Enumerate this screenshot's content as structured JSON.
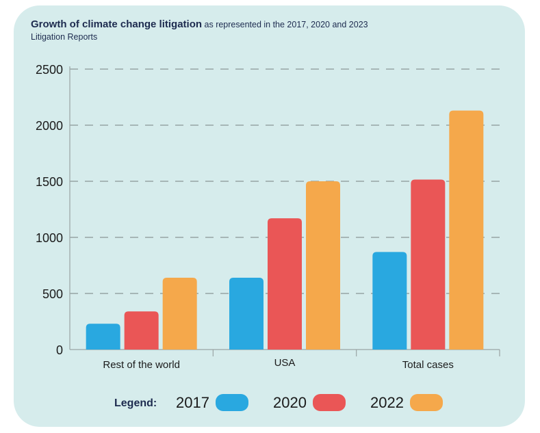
{
  "card_color": "#d6ecec",
  "title": {
    "main": "Growth of climate change litigation",
    "sub": "as represented in the 2017, 2020 and 2023 Litigation Reports"
  },
  "legend": {
    "title": "Legend:"
  },
  "chart_data": {
    "type": "bar",
    "title": "Growth of climate change litigation",
    "subtitle": "as represented in the 2017, 2020 and 2023 Litigation Reports",
    "categories": [
      "Rest of the world",
      "USA",
      "Total cases"
    ],
    "series": [
      {
        "name": "2017",
        "color": "#29a8e0",
        "values": [
          230,
          640,
          870
        ]
      },
      {
        "name": "2020",
        "color": "#ea5656",
        "values": [
          340,
          1170,
          1515
        ]
      },
      {
        "name": "2022",
        "color": "#f5a84b",
        "values": [
          640,
          1500,
          2130
        ]
      }
    ],
    "yticks": [
      0,
      500,
      1000,
      1500,
      2000,
      2500
    ],
    "ylim": [
      0,
      2500
    ],
    "grid": true,
    "legend_position": "bottom"
  }
}
